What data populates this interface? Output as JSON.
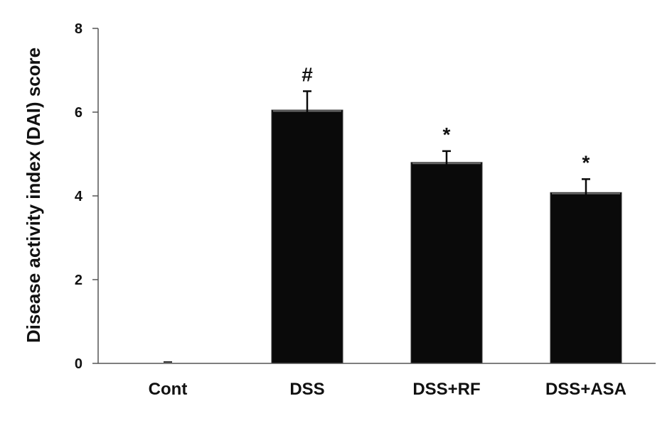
{
  "chart_data": {
    "type": "bar",
    "title": "",
    "xlabel": "",
    "ylabel": "Disease activity index (DAI)  score",
    "ylim": [
      0,
      8
    ],
    "yticks": [
      "0",
      "2",
      "4",
      "6",
      "8"
    ],
    "categories": [
      "Cont",
      "DSS",
      "DSS+RF",
      "DSS+ASA"
    ],
    "values": [
      0.0,
      6.05,
      4.8,
      4.08
    ],
    "errors": [
      0.0,
      0.45,
      0.27,
      0.32
    ],
    "annotations": [
      "",
      "#",
      "*",
      "*"
    ],
    "bar_color": "#0a0a0a",
    "grid": false,
    "legend": "none"
  }
}
